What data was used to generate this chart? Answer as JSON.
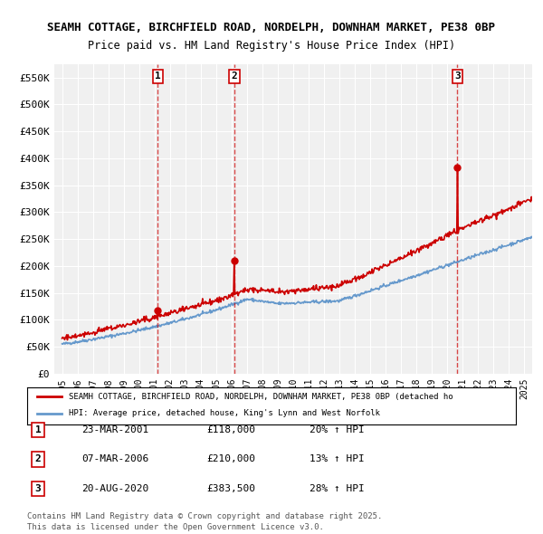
{
  "title_line1": "SEAMH COTTAGE, BIRCHFIELD ROAD, NORDELPH, DOWNHAM MARKET, PE38 0BP",
  "title_line2": "Price paid vs. HM Land Registry's House Price Index (HPI)",
  "bg_color": "#ffffff",
  "plot_bg_color": "#f0f0f0",
  "grid_color": "#ffffff",
  "red_color": "#cc0000",
  "blue_color": "#6699cc",
  "ylim": [
    0,
    575000
  ],
  "yticks": [
    0,
    50000,
    100000,
    150000,
    200000,
    250000,
    300000,
    350000,
    400000,
    450000,
    500000,
    550000
  ],
  "ytick_labels": [
    "£0",
    "£50K",
    "£100K",
    "£150K",
    "£200K",
    "£250K",
    "£300K",
    "£350K",
    "£400K",
    "£450K",
    "£500K",
    "£550K"
  ],
  "xlim_start": 1994.5,
  "xlim_end": 2025.5,
  "xtick_years": [
    1995,
    1996,
    1997,
    1998,
    1999,
    2000,
    2001,
    2002,
    2003,
    2004,
    2005,
    2006,
    2007,
    2008,
    2009,
    2010,
    2011,
    2012,
    2013,
    2014,
    2015,
    2016,
    2017,
    2018,
    2019,
    2020,
    2021,
    2022,
    2023,
    2024,
    2025
  ],
  "sales": [
    {
      "label": "1",
      "date": "23-MAR-2001",
      "year_x": 2001.22,
      "price": 118000,
      "pct": "20%",
      "dir": "↑"
    },
    {
      "label": "2",
      "date": "07-MAR-2006",
      "year_x": 2006.18,
      "price": 210000,
      "pct": "13%",
      "dir": "↑"
    },
    {
      "label": "3",
      "date": "20-AUG-2020",
      "year_x": 2020.64,
      "price": 383500,
      "pct": "28%",
      "dir": "↑"
    }
  ],
  "legend_label_red": "SEAMH COTTAGE, BIRCHFIELD ROAD, NORDELPH, DOWNHAM MARKET, PE38 0BP (detached ho",
  "legend_label_blue": "HPI: Average price, detached house, King's Lynn and West Norfolk",
  "footer_line1": "Contains HM Land Registry data © Crown copyright and database right 2025.",
  "footer_line2": "This data is licensed under the Open Government Licence v3.0."
}
